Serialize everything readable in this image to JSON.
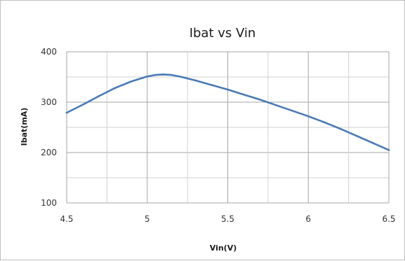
{
  "chart_data": {
    "type": "line",
    "title": "Ibat vs Vin",
    "xlabel": "Vin(V)",
    "ylabel": "Ibat(mA)",
    "xlim": [
      4.5,
      6.5
    ],
    "ylim": [
      100,
      400
    ],
    "x_ticks": [
      4.5,
      5,
      5.5,
      6,
      6.5
    ],
    "x_tick_labels": [
      "4.5",
      "5",
      "5.5",
      "6",
      "6.5"
    ],
    "x_minor_grid": [
      4.75,
      5.25,
      5.75,
      6.25
    ],
    "y_ticks": [
      100,
      200,
      300,
      400
    ],
    "y_tick_labels": [
      "100",
      "200",
      "300",
      "400"
    ],
    "y_minor_grid": [
      150,
      250,
      350
    ],
    "grid": true,
    "legend": "none",
    "colors": {
      "series": "#4a7ab5",
      "grid": "#d0d0d0",
      "grid_major": "#a6a6a6",
      "frame": "#bfbfbf"
    },
    "series": [
      {
        "x": [
          4.5,
          4.6,
          4.7,
          4.8,
          4.9,
          5.0,
          5.05,
          5.1,
          5.15,
          5.2,
          5.3,
          5.4,
          5.5,
          5.6,
          5.7,
          5.8,
          5.9,
          6.0,
          6.1,
          6.2,
          6.3,
          6.4,
          6.5
        ],
        "values": [
          279,
          295,
          312,
          328,
          341,
          351,
          354,
          355,
          354,
          351,
          343,
          334,
          325,
          315,
          305,
          294,
          283,
          272,
          260,
          247,
          233,
          219,
          205
        ]
      }
    ]
  }
}
